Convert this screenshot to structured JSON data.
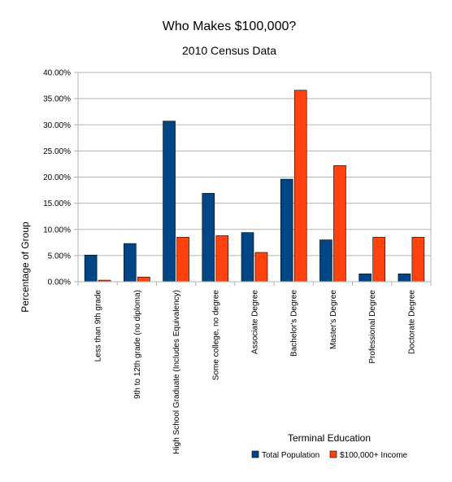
{
  "chart_data": {
    "type": "bar",
    "title": "Who Makes $100,000?",
    "subtitle": "2010 Census Data",
    "xlabel": "Terminal Education",
    "ylabel": "Percentage of Group",
    "ylim": [
      0,
      40
    ],
    "yticks": [
      "0.00%",
      "5.00%",
      "10.00%",
      "15.00%",
      "20.00%",
      "25.00%",
      "30.00%",
      "35.00%",
      "40.00%"
    ],
    "grid": true,
    "legend_position": "bottom-right",
    "categories": [
      "Less than 9th grade",
      "9th to 12th grade (no diploma)",
      "High School Graduate (Includes Equivalency)",
      "Some college, no degree",
      "Associate Degree",
      "Bachelor's Degree",
      "Master's Degree",
      "Professional Degree",
      "Doctorate Degree"
    ],
    "series": [
      {
        "name": "Total Population",
        "color": "#004586",
        "values": [
          5.1,
          7.3,
          30.7,
          16.9,
          9.4,
          19.6,
          8.0,
          1.5,
          1.5
        ]
      },
      {
        "name": "$100,000+ Income",
        "color": "#ff420e",
        "values": [
          0.3,
          0.9,
          8.5,
          8.8,
          5.6,
          36.6,
          22.2,
          8.5,
          8.5
        ]
      }
    ]
  }
}
